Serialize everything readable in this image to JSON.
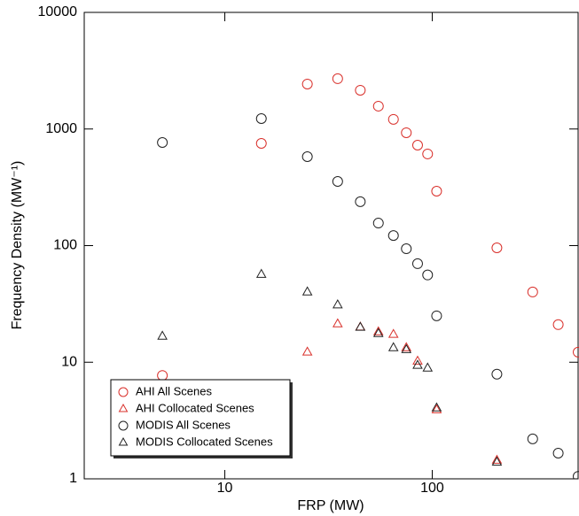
{
  "chart_data": {
    "type": "scatter",
    "x_label": "FRP (MW)",
    "y_label": "Frequency Density (MW⁻¹)",
    "x": [
      5,
      15,
      25,
      35,
      45,
      55,
      65,
      75,
      85,
      95,
      105,
      205,
      305,
      405,
      505
    ],
    "series": [
      {
        "name": "AHI All Scenes",
        "color": "#d9302b",
        "marker": "circle",
        "values": [
          7.7,
          753,
          2430,
          2700,
          2150,
          1570,
          1210,
          929,
          727,
          611,
          293,
          95.7,
          40,
          21,
          12.2
        ]
      },
      {
        "name": "AHI Collocated Scenes",
        "color": "#d9302b",
        "marker": "triangle",
        "values": [
          null,
          null,
          12.2,
          21.3,
          20,
          18.2,
          17.3,
          13.3,
          10.2,
          null,
          3.9,
          1.44,
          null,
          null,
          null
        ]
      },
      {
        "name": "MODIS All Scenes",
        "color": "#222222",
        "marker": "circle",
        "values": [
          766,
          1228,
          579,
          355,
          238,
          156,
          122,
          94,
          70,
          56,
          25,
          7.9,
          2.2,
          1.66,
          1.05
        ]
      },
      {
        "name": "MODIS Collocated Scenes",
        "color": "#222222",
        "marker": "triangle",
        "values": [
          16.7,
          56.6,
          40,
          31,
          19.9,
          17.6,
          13.3,
          12.8,
          9.4,
          8.9,
          4.05,
          1.39,
          null,
          null,
          null
        ]
      }
    ],
    "xlim": [
      2.1,
      505
    ],
    "ylim": [
      1,
      10000
    ],
    "xticks": [
      10,
      100
    ],
    "yticks": [
      1,
      10,
      100,
      1000,
      10000
    ],
    "x_scale": "log",
    "y_scale": "log",
    "legend_position": "lower left"
  }
}
